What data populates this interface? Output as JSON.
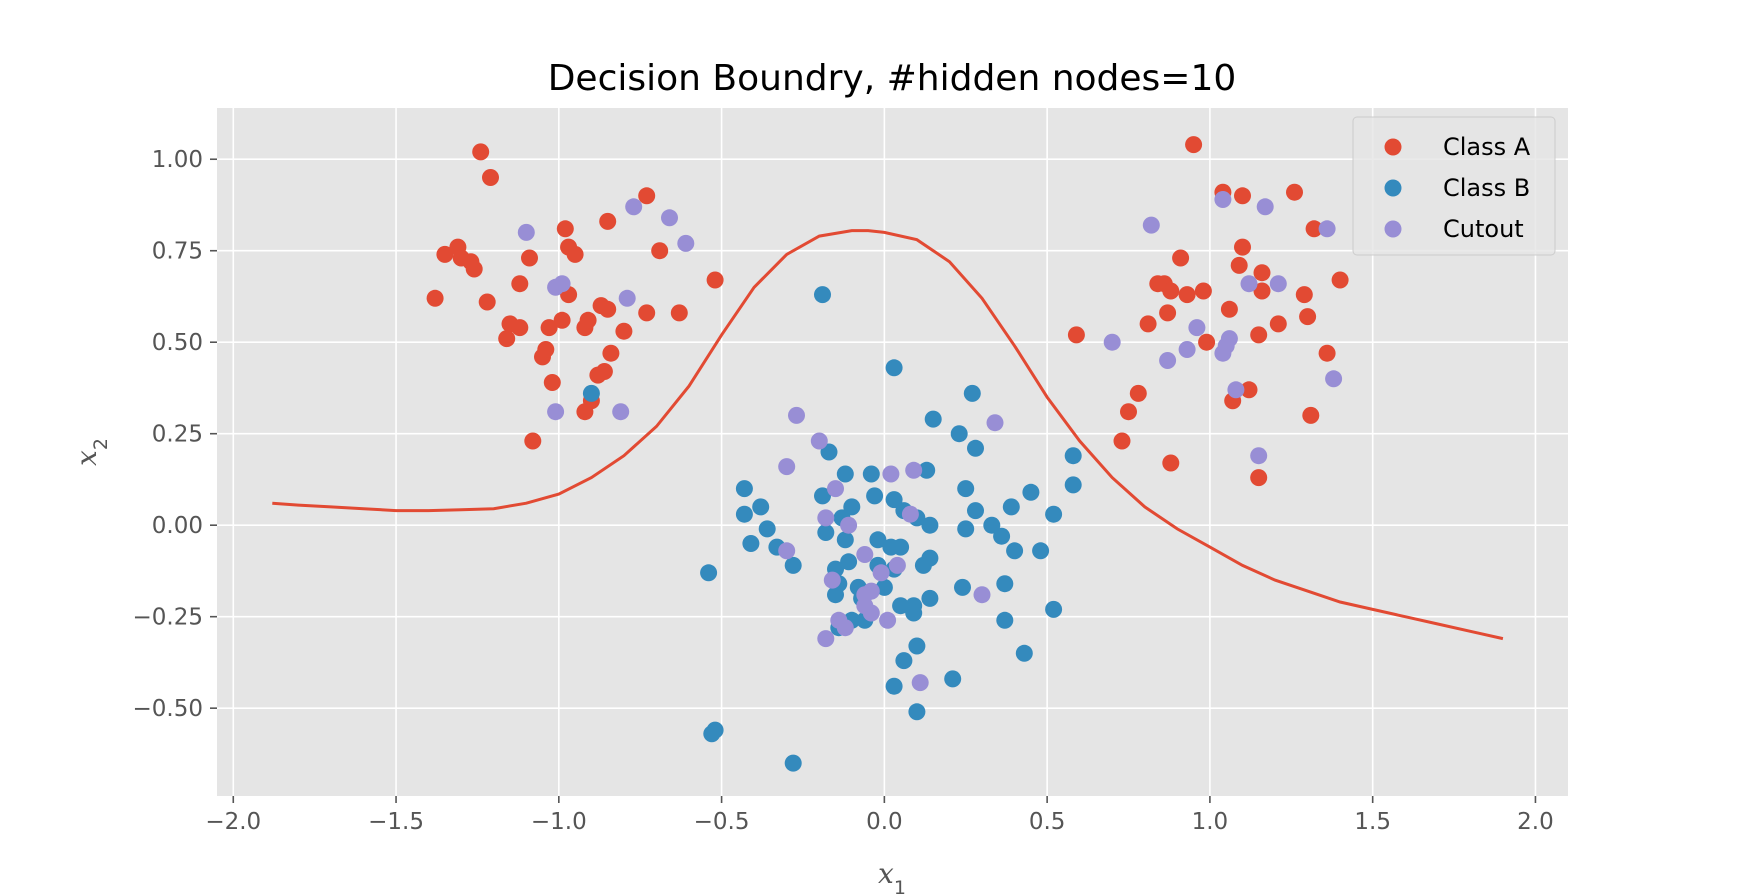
{
  "chart_data": {
    "type": "scatter",
    "title": "Decision Boundry, #hidden nodes=10",
    "xlabel": "x1",
    "ylabel": "x2",
    "xlim": [
      -2.05,
      2.1
    ],
    "ylim": [
      -0.74,
      1.14
    ],
    "xticks": [
      -2.0,
      -1.5,
      -1.0,
      -0.5,
      0.0,
      0.5,
      1.0,
      1.5,
      2.0
    ],
    "xtick_labels": [
      "−2.0",
      "−1.5",
      "−1.0",
      "−0.5",
      "0.0",
      "0.5",
      "1.0",
      "1.5",
      "2.0"
    ],
    "yticks": [
      -0.5,
      -0.25,
      0.0,
      0.25,
      0.5,
      0.75,
      1.0
    ],
    "ytick_labels": [
      "−0.50",
      "−0.25",
      "0.00",
      "0.25",
      "0.50",
      "0.75",
      "1.00"
    ],
    "grid": true,
    "legend_position": "upper right",
    "colors": {
      "background": "#E5E5E5",
      "grid": "#FFFFFF",
      "class_a": "#E24A33",
      "class_b": "#348ABD",
      "cutout": "#988ED5",
      "boundary": "#E24A33"
    },
    "series": [
      {
        "name": "Class A",
        "color": "#E24A33",
        "points": [
          [
            -1.24,
            1.02
          ],
          [
            -1.21,
            0.95
          ],
          [
            -1.38,
            0.62
          ],
          [
            -1.35,
            0.74
          ],
          [
            -1.31,
            0.76
          ],
          [
            -1.3,
            0.73
          ],
          [
            -1.27,
            0.72
          ],
          [
            -1.26,
            0.7
          ],
          [
            -1.22,
            0.61
          ],
          [
            -1.12,
            0.66
          ],
          [
            -1.09,
            0.73
          ],
          [
            -1.16,
            0.51
          ],
          [
            -1.15,
            0.55
          ],
          [
            -1.12,
            0.54
          ],
          [
            -1.05,
            0.46
          ],
          [
            -1.04,
            0.48
          ],
          [
            -1.02,
            0.39
          ],
          [
            -1.08,
            0.23
          ],
          [
            -1.03,
            0.54
          ],
          [
            -0.99,
            0.56
          ],
          [
            -0.98,
            0.81
          ],
          [
            -0.97,
            0.76
          ],
          [
            -0.95,
            0.74
          ],
          [
            -0.97,
            0.63
          ],
          [
            -0.92,
            0.54
          ],
          [
            -0.91,
            0.56
          ],
          [
            -0.88,
            0.41
          ],
          [
            -0.86,
            0.42
          ],
          [
            -0.87,
            0.6
          ],
          [
            -0.85,
            0.59
          ],
          [
            -0.85,
            0.83
          ],
          [
            -0.84,
            0.47
          ],
          [
            -0.8,
            0.53
          ],
          [
            -0.9,
            0.34
          ],
          [
            -0.92,
            0.31
          ],
          [
            -0.73,
            0.9
          ],
          [
            -0.73,
            0.58
          ],
          [
            -0.69,
            0.75
          ],
          [
            -0.63,
            0.58
          ],
          [
            -0.52,
            0.67
          ],
          [
            0.59,
            0.52
          ],
          [
            0.73,
            0.23
          ],
          [
            0.75,
            0.31
          ],
          [
            0.78,
            0.36
          ],
          [
            0.81,
            0.55
          ],
          [
            0.84,
            0.66
          ],
          [
            0.86,
            0.66
          ],
          [
            0.87,
            0.58
          ],
          [
            0.88,
            0.64
          ],
          [
            0.88,
            0.17
          ],
          [
            0.91,
            0.73
          ],
          [
            0.93,
            0.63
          ],
          [
            0.95,
            1.04
          ],
          [
            0.98,
            0.64
          ],
          [
            0.99,
            0.5
          ],
          [
            1.04,
            0.91
          ],
          [
            1.06,
            0.59
          ],
          [
            1.07,
            0.34
          ],
          [
            1.09,
            0.71
          ],
          [
            1.1,
            0.76
          ],
          [
            1.1,
            0.9
          ],
          [
            1.12,
            0.37
          ],
          [
            1.15,
            0.13
          ],
          [
            1.15,
            0.52
          ],
          [
            1.16,
            0.64
          ],
          [
            1.16,
            0.69
          ],
          [
            1.21,
            0.55
          ],
          [
            1.26,
            0.91
          ],
          [
            1.29,
            0.63
          ],
          [
            1.3,
            0.57
          ],
          [
            1.32,
            0.81
          ],
          [
            1.31,
            0.3
          ],
          [
            1.36,
            0.47
          ],
          [
            1.4,
            0.67
          ]
        ]
      },
      {
        "name": "Class B",
        "color": "#348ABD",
        "points": [
          [
            -0.19,
            0.63
          ],
          [
            0.03,
            0.43
          ],
          [
            -0.9,
            0.36
          ],
          [
            0.27,
            0.36
          ],
          [
            0.15,
            0.29
          ],
          [
            0.23,
            0.25
          ],
          [
            0.28,
            0.21
          ],
          [
            -0.17,
            0.2
          ],
          [
            -0.12,
            0.14
          ],
          [
            -0.04,
            0.14
          ],
          [
            0.13,
            0.15
          ],
          [
            0.58,
            0.19
          ],
          [
            -0.43,
            0.1
          ],
          [
            -0.19,
            0.08
          ],
          [
            -0.1,
            0.05
          ],
          [
            -0.03,
            0.08
          ],
          [
            0.03,
            0.07
          ],
          [
            0.25,
            0.1
          ],
          [
            0.45,
            0.09
          ],
          [
            0.58,
            0.11
          ],
          [
            -0.38,
            0.05
          ],
          [
            -0.43,
            0.03
          ],
          [
            -0.36,
            -0.01
          ],
          [
            -0.13,
            0.02
          ],
          [
            0.06,
            0.04
          ],
          [
            0.1,
            0.02
          ],
          [
            0.14,
            0.0
          ],
          [
            0.28,
            0.04
          ],
          [
            0.39,
            0.05
          ],
          [
            0.52,
            0.03
          ],
          [
            -0.18,
            -0.02
          ],
          [
            -0.12,
            -0.04
          ],
          [
            0.25,
            -0.01
          ],
          [
            0.33,
            0.0
          ],
          [
            0.36,
            -0.03
          ],
          [
            -0.41,
            -0.05
          ],
          [
            -0.33,
            -0.06
          ],
          [
            0.02,
            -0.06
          ],
          [
            0.05,
            -0.06
          ],
          [
            -0.02,
            -0.04
          ],
          [
            0.4,
            -0.07
          ],
          [
            0.48,
            -0.07
          ],
          [
            -0.28,
            -0.11
          ],
          [
            -0.15,
            -0.12
          ],
          [
            -0.11,
            -0.1
          ],
          [
            -0.02,
            -0.11
          ],
          [
            0.03,
            -0.12
          ],
          [
            0.14,
            -0.09
          ],
          [
            -0.54,
            -0.13
          ],
          [
            -0.14,
            -0.16
          ],
          [
            -0.08,
            -0.17
          ],
          [
            0.0,
            -0.17
          ],
          [
            0.12,
            -0.11
          ],
          [
            0.24,
            -0.17
          ],
          [
            0.37,
            -0.16
          ],
          [
            -0.15,
            -0.19
          ],
          [
            -0.07,
            -0.2
          ],
          [
            0.05,
            -0.22
          ],
          [
            0.09,
            -0.22
          ],
          [
            0.14,
            -0.2
          ],
          [
            0.52,
            -0.23
          ],
          [
            -0.14,
            -0.28
          ],
          [
            -0.1,
            -0.26
          ],
          [
            -0.06,
            -0.26
          ],
          [
            0.09,
            -0.24
          ],
          [
            0.37,
            -0.26
          ],
          [
            0.06,
            -0.37
          ],
          [
            0.1,
            -0.33
          ],
          [
            0.21,
            -0.42
          ],
          [
            0.43,
            -0.35
          ],
          [
            0.03,
            -0.44
          ],
          [
            0.1,
            -0.51
          ],
          [
            -0.52,
            -0.56
          ],
          [
            -0.53,
            -0.57
          ],
          [
            -0.28,
            -0.65
          ]
        ]
      },
      {
        "name": "Cutout",
        "color": "#988ED5",
        "points": [
          [
            -1.1,
            0.8
          ],
          [
            -1.01,
            0.65
          ],
          [
            -0.99,
            0.66
          ],
          [
            -0.77,
            0.87
          ],
          [
            -0.66,
            0.84
          ],
          [
            -0.61,
            0.77
          ],
          [
            -0.79,
            0.62
          ],
          [
            -1.01,
            0.31
          ],
          [
            -0.81,
            0.31
          ],
          [
            -0.27,
            0.3
          ],
          [
            -0.2,
            0.23
          ],
          [
            -0.3,
            0.16
          ],
          [
            -0.15,
            0.1
          ],
          [
            0.02,
            0.14
          ],
          [
            0.09,
            0.15
          ],
          [
            0.34,
            0.28
          ],
          [
            -0.18,
            0.02
          ],
          [
            -0.11,
            0.0
          ],
          [
            0.08,
            0.03
          ],
          [
            -0.3,
            -0.07
          ],
          [
            -0.06,
            -0.08
          ],
          [
            0.04,
            -0.11
          ],
          [
            -0.01,
            -0.13
          ],
          [
            -0.16,
            -0.15
          ],
          [
            -0.04,
            -0.18
          ],
          [
            -0.06,
            -0.19
          ],
          [
            -0.06,
            -0.22
          ],
          [
            -0.04,
            -0.24
          ],
          [
            0.01,
            -0.26
          ],
          [
            0.3,
            -0.19
          ],
          [
            -0.14,
            -0.26
          ],
          [
            -0.12,
            -0.28
          ],
          [
            -0.18,
            -0.31
          ],
          [
            0.11,
            -0.43
          ],
          [
            0.82,
            0.82
          ],
          [
            1.04,
            0.89
          ],
          [
            1.17,
            0.87
          ],
          [
            1.36,
            0.81
          ],
          [
            1.21,
            0.66
          ],
          [
            1.12,
            0.66
          ],
          [
            0.7,
            0.5
          ],
          [
            0.96,
            0.54
          ],
          [
            1.06,
            0.51
          ],
          [
            1.05,
            0.49
          ],
          [
            1.04,
            0.47
          ],
          [
            0.93,
            0.48
          ],
          [
            0.87,
            0.45
          ],
          [
            1.08,
            0.37
          ],
          [
            1.38,
            0.4
          ],
          [
            1.15,
            0.19
          ]
        ]
      }
    ],
    "boundary": {
      "name": "decision boundary",
      "x": [
        -1.88,
        -1.8,
        -1.7,
        -1.6,
        -1.5,
        -1.4,
        -1.3,
        -1.2,
        -1.1,
        -1.0,
        -0.9,
        -0.8,
        -0.7,
        -0.6,
        -0.5,
        -0.4,
        -0.3,
        -0.2,
        -0.1,
        -0.05,
        0.0,
        0.1,
        0.2,
        0.3,
        0.4,
        0.5,
        0.6,
        0.7,
        0.8,
        0.9,
        1.0,
        1.1,
        1.2,
        1.3,
        1.4,
        1.5,
        1.6,
        1.7,
        1.8,
        1.9
      ],
      "y": [
        0.06,
        0.055,
        0.05,
        0.045,
        0.04,
        0.04,
        0.042,
        0.045,
        0.06,
        0.085,
        0.13,
        0.19,
        0.27,
        0.38,
        0.52,
        0.65,
        0.74,
        0.79,
        0.805,
        0.805,
        0.8,
        0.78,
        0.72,
        0.62,
        0.49,
        0.35,
        0.23,
        0.13,
        0.05,
        -0.01,
        -0.06,
        -0.11,
        -0.15,
        -0.18,
        -0.21,
        -0.23,
        -0.25,
        -0.27,
        -0.29,
        -0.31
      ]
    },
    "legend": [
      "Class A",
      "Class B",
      "Cutout"
    ]
  }
}
